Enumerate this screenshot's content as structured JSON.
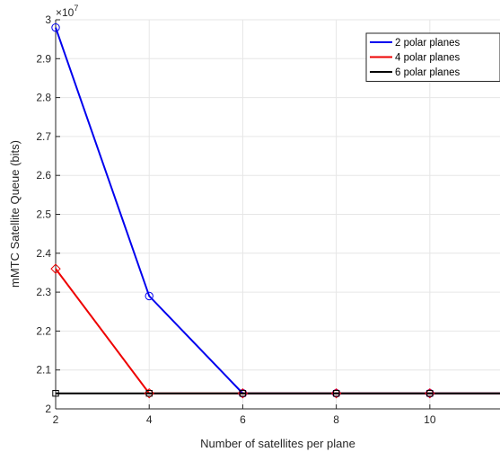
{
  "chart_data": {
    "type": "line",
    "xlabel": "Number of satellites per plane",
    "ylabel": "mMTC Satellite Queue (bits)",
    "y_multiplier": "×10",
    "y_exponent": "7",
    "xlim": [
      2,
      11.5
    ],
    "ylim": [
      2.0,
      3.0
    ],
    "xticks": [
      2,
      4,
      6,
      8,
      10
    ],
    "xtick_labels": [
      "2",
      "4",
      "6",
      "8",
      "10"
    ],
    "yticks": [
      2.0,
      2.1,
      2.2,
      2.3,
      2.4,
      2.5,
      2.6,
      2.7,
      2.8,
      2.9,
      3.0
    ],
    "ytick_labels": [
      "2",
      "2.1",
      "2.2",
      "2.3",
      "2.4",
      "2.5",
      "2.6",
      "2.7",
      "2.8",
      "2.9",
      "3"
    ],
    "grid": true,
    "legend_position": "top-right",
    "series": [
      {
        "name": "2 polar planes",
        "color": "#0000ee",
        "marker": "circle",
        "x": [
          2,
          4,
          6,
          8,
          10,
          11.5
        ],
        "values": [
          2.98,
          2.29,
          2.04,
          2.04,
          2.04,
          2.04
        ]
      },
      {
        "name": "4 polar planes",
        "color": "#ee0000",
        "marker": "diamond",
        "x": [
          2,
          4,
          6,
          8,
          10,
          11.5
        ],
        "values": [
          2.36,
          2.04,
          2.04,
          2.04,
          2.04,
          2.04
        ]
      },
      {
        "name": "6 polar planes",
        "color": "#000000",
        "marker": "square",
        "x": [
          2,
          4,
          6,
          8,
          10,
          11.5
        ],
        "values": [
          2.04,
          2.04,
          2.04,
          2.04,
          2.04,
          2.04
        ]
      }
    ]
  }
}
